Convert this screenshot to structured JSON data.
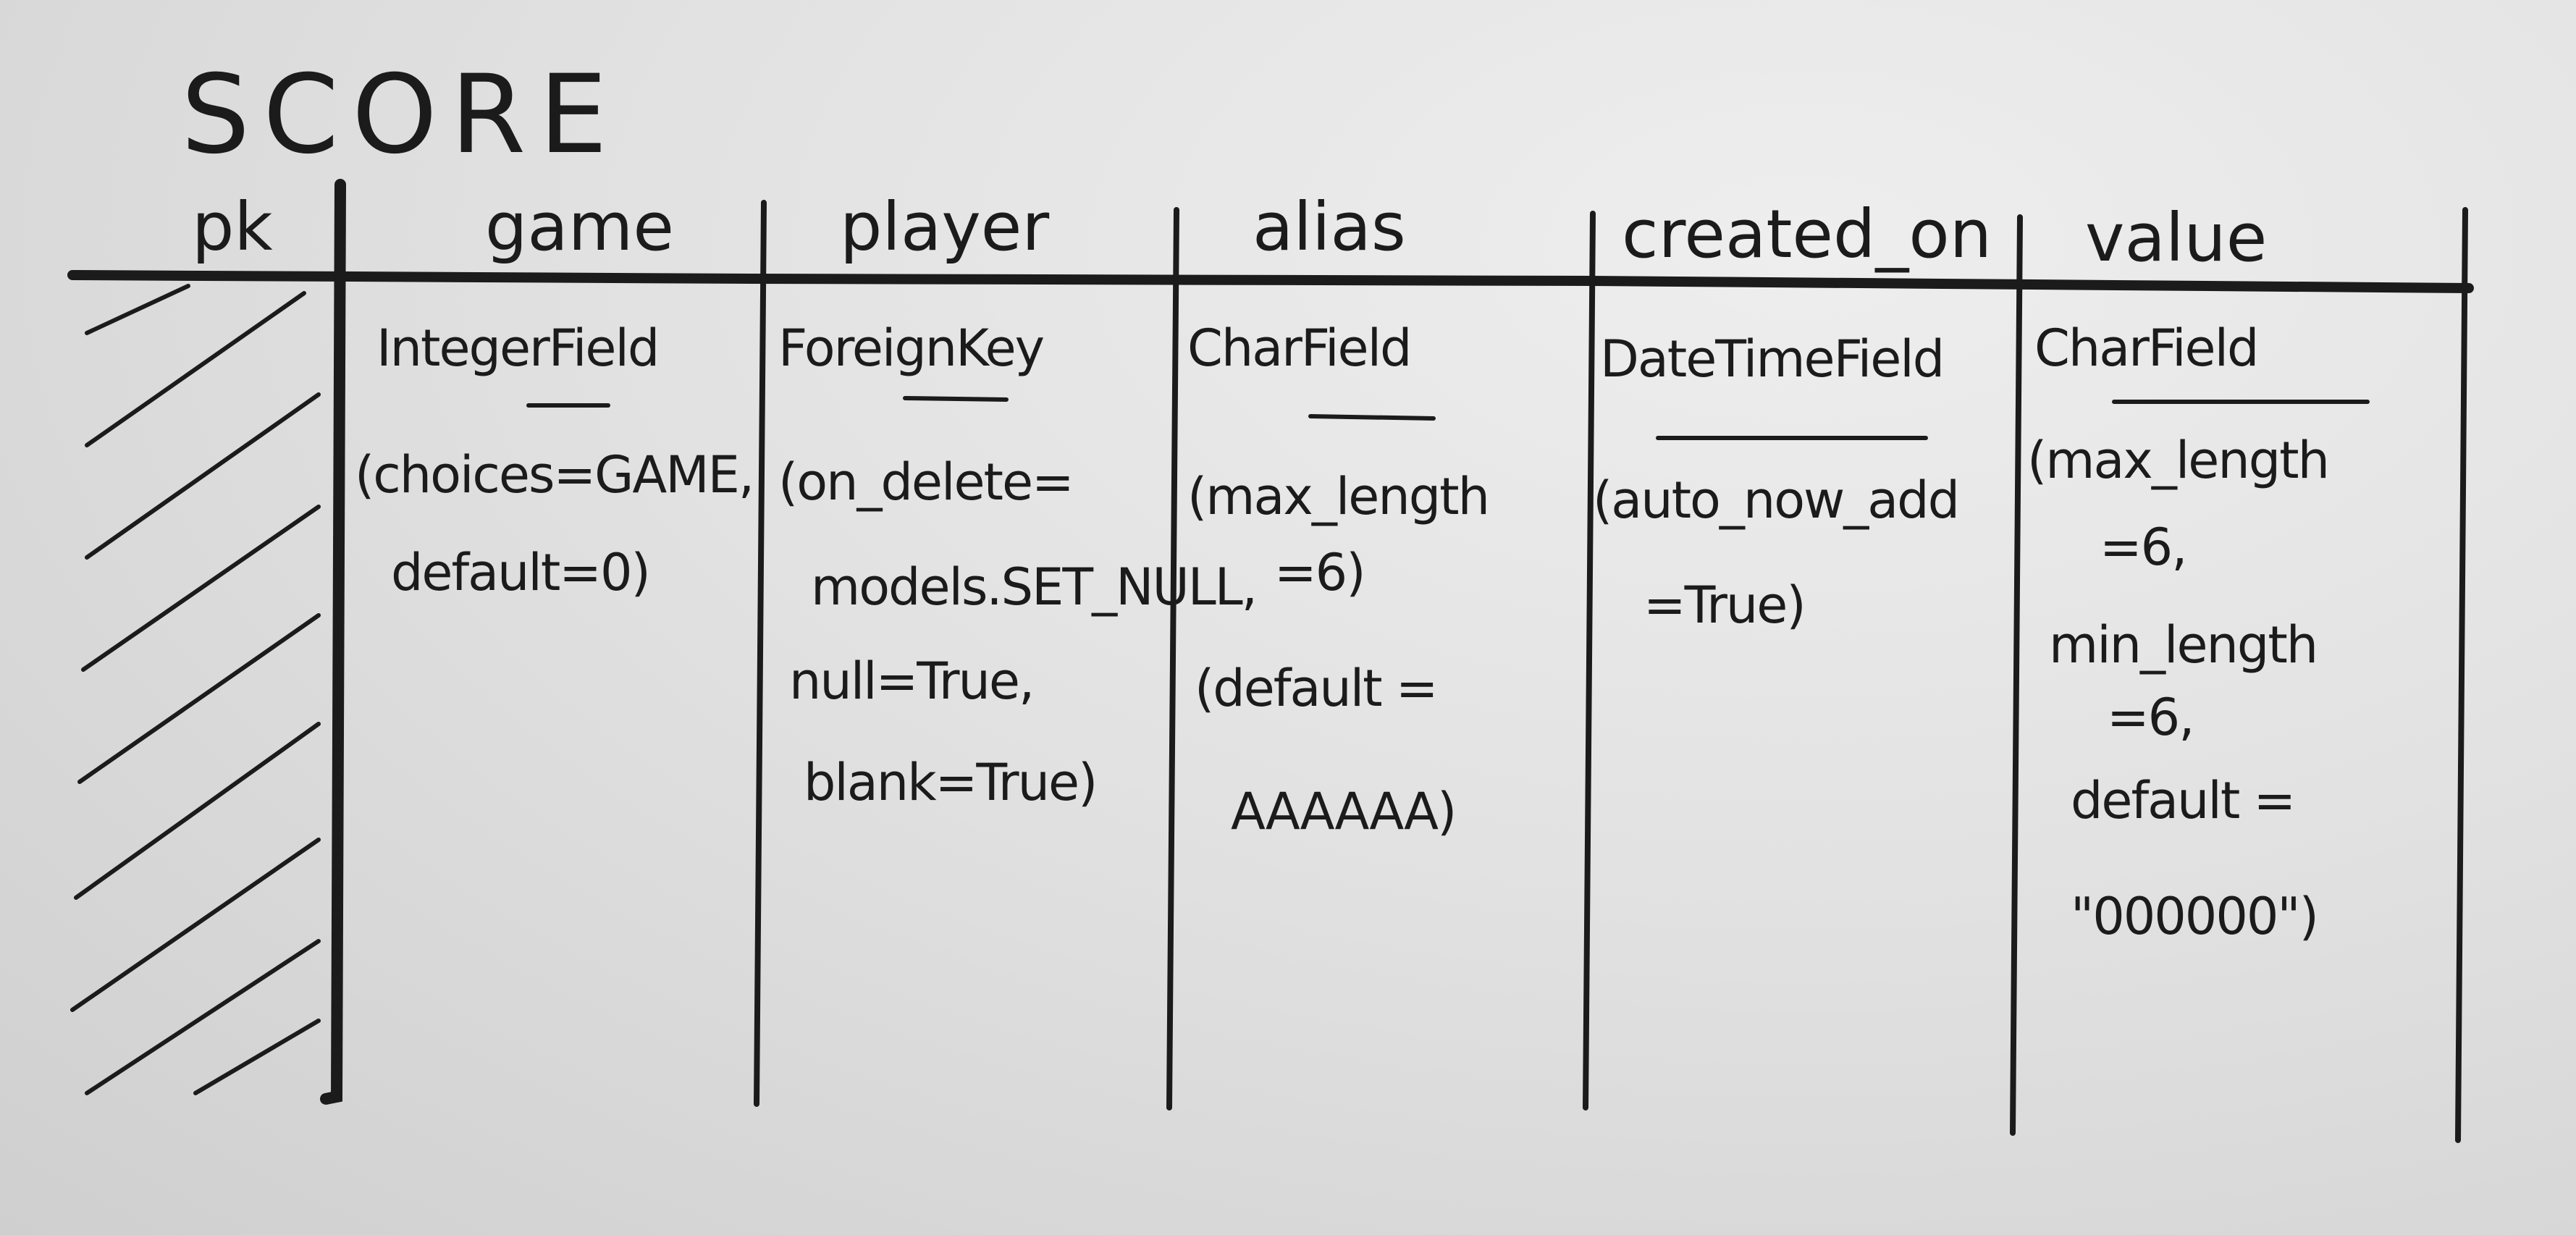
{
  "table": {
    "title": "SCORE",
    "columns": [
      {
        "name": "pk",
        "lines": []
      },
      {
        "name": "game",
        "lines": [
          "IntegerField",
          "(choices=GAME,",
          "default=0)"
        ]
      },
      {
        "name": "player",
        "lines": [
          "ForeignKey",
          "(on_delete=",
          "models.SET_NULL,",
          "null=True,",
          "blank=True)"
        ]
      },
      {
        "name": "alias",
        "lines": [
          "CharField",
          "(max_length",
          "=6)",
          "(default =",
          "AAAAAA)"
        ]
      },
      {
        "name": "created_on",
        "lines": [
          "DateTimeField",
          "(auto_now_add",
          "=True)"
        ]
      },
      {
        "name": "value",
        "lines": [
          "CharField",
          "(max_length",
          "=6,",
          "min_length",
          "=6,",
          "default =",
          "\"000000\")"
        ]
      }
    ]
  }
}
